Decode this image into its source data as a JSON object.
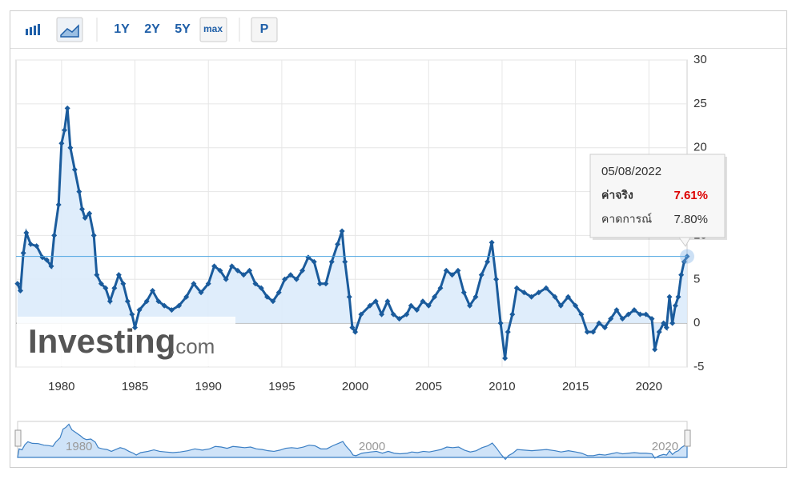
{
  "toolbar": {
    "buttons": [
      "1Y",
      "2Y",
      "5Y",
      "max",
      "P"
    ]
  },
  "watermark": {
    "brand": "Investing",
    "suffix": ".com"
  },
  "chart_data": {
    "type": "line",
    "color": "#1a5b9c",
    "fill_color": "#dcebfb",
    "grid": true,
    "y_axis_side": "right",
    "xlim": [
      1976.9,
      2022.6
    ],
    "xticks": [
      1980,
      1985,
      1990,
      1995,
      2000,
      2005,
      2010,
      2015,
      2020
    ],
    "ylim": [
      -5,
      30
    ],
    "yticks": [
      -5,
      0,
      5,
      10,
      15,
      20,
      25,
      30
    ],
    "x": [
      1977.0,
      1977.2,
      1977.4,
      1977.6,
      1977.9,
      1978.3,
      1978.7,
      1979.0,
      1979.3,
      1979.5,
      1979.8,
      1980.0,
      1980.2,
      1980.4,
      1980.6,
      1980.9,
      1981.2,
      1981.4,
      1981.6,
      1981.9,
      1982.2,
      1982.4,
      1982.7,
      1983.0,
      1983.3,
      1983.6,
      1983.9,
      1984.2,
      1984.5,
      1984.8,
      1985.0,
      1985.3,
      1985.8,
      1986.2,
      1986.6,
      1987.0,
      1987.5,
      1988.0,
      1988.5,
      1989.0,
      1989.5,
      1990.0,
      1990.4,
      1990.8,
      1991.2,
      1991.6,
      1992.0,
      1992.4,
      1992.8,
      1993.2,
      1993.6,
      1994.0,
      1994.4,
      1994.8,
      1995.2,
      1995.6,
      1996.0,
      1996.4,
      1996.8,
      1997.2,
      1997.6,
      1998.0,
      1998.4,
      1998.8,
      1999.1,
      1999.3,
      1999.6,
      1999.8,
      2000.0,
      2000.4,
      2001.0,
      2001.4,
      2001.8,
      2002.2,
      2002.6,
      2003.0,
      2003.5,
      2003.8,
      2004.2,
      2004.6,
      2005.0,
      2005.4,
      2005.8,
      2006.2,
      2006.6,
      2007.0,
      2007.4,
      2007.8,
      2008.2,
      2008.6,
      2009.0,
      2009.3,
      2009.6,
      2009.9,
      2010.2,
      2010.4,
      2010.7,
      2011.0,
      2011.5,
      2012.0,
      2012.5,
      2013.0,
      2013.6,
      2014.0,
      2014.5,
      2015.0,
      2015.4,
      2015.8,
      2016.2,
      2016.6,
      2017.0,
      2017.4,
      2017.8,
      2018.2,
      2018.6,
      2019.0,
      2019.4,
      2019.8,
      2020.2,
      2020.4,
      2020.7,
      2021.0,
      2021.2,
      2021.4,
      2021.6,
      2021.8,
      2022.0,
      2022.2,
      2022.4,
      2022.6
    ],
    "values": [
      4.5,
      3.7,
      8,
      10.3,
      9,
      8.8,
      7.5,
      7.2,
      6.5,
      10,
      13.5,
      20.5,
      22,
      24.5,
      20,
      17.5,
      15,
      13,
      12,
      12.5,
      10,
      5.5,
      4.5,
      4,
      2.5,
      4,
      5.5,
      4.5,
      2.5,
      1,
      -0.5,
      1.5,
      2.5,
      3.7,
      2.5,
      2,
      1.5,
      2,
      3,
      4.5,
      3.5,
      4.5,
      6.5,
      6,
      5,
      6.5,
      6,
      5.5,
      6,
      4.5,
      4,
      3,
      2.5,
      3.5,
      5,
      5.5,
      5,
      6,
      7.5,
      7,
      4.5,
      4.5,
      7,
      9,
      10.5,
      7,
      3,
      -0.5,
      -1,
      1,
      2,
      2.5,
      1,
      2.5,
      1,
      0.5,
      1,
      2,
      1.5,
      2.5,
      2,
      3,
      4,
      6,
      5.5,
      6,
      3.5,
      2,
      3,
      5.5,
      7,
      9.2,
      5,
      0,
      -4,
      -1,
      1,
      4,
      3.5,
      3,
      3.5,
      4,
      3,
      2,
      3,
      2,
      1,
      -1,
      -1,
      0,
      -0.5,
      0.5,
      1.5,
      0.5,
      1,
      1.5,
      1,
      1,
      0.5,
      -3,
      -1,
      0,
      -0.5,
      3,
      0,
      2,
      3,
      5.5,
      7,
      7.61
    ],
    "tooltip": {
      "date": "05/08/2022",
      "actual_name": "ค่าจริง",
      "actual": 7.61,
      "actual_label": "7.61%",
      "forecast_name": "คาดการณ์",
      "forecast_label": "7.80%"
    },
    "navigator_ticks": [
      1980,
      2000,
      2020
    ]
  }
}
